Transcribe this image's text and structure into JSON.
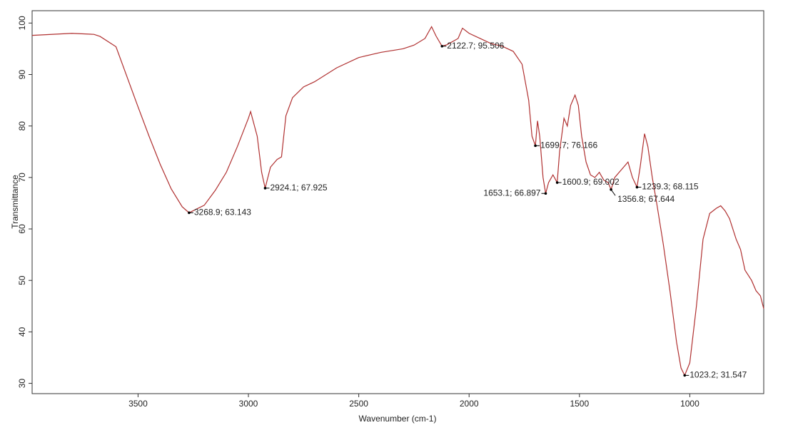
{
  "chart_data": {
    "type": "line",
    "xlabel": "Wavenumber (cm-1)",
    "ylabel": "Transmittance",
    "color": "#b03030",
    "xlim": [
      3980,
      665
    ],
    "ylim": [
      28,
      102.4
    ],
    "xticks": [
      3500,
      3000,
      2500,
      2000,
      1500,
      1000
    ],
    "yticks": [
      30,
      40,
      50,
      60,
      70,
      80,
      90,
      100
    ],
    "x": [
      3980,
      3800,
      3700,
      3672,
      3600,
      3500,
      3450,
      3400,
      3350,
      3300,
      3268.9,
      3200,
      3150,
      3100,
      3050,
      3000,
      2990,
      2960,
      2940,
      2924.1,
      2900,
      2870,
      2850,
      2830,
      2800,
      2750,
      2700,
      2600,
      2500,
      2400,
      2300,
      2250,
      2200,
      2170,
      2150,
      2122.7,
      2100,
      2050,
      2030,
      2000,
      1950,
      1900,
      1850,
      1800,
      1760,
      1730,
      1715,
      1699.7,
      1690,
      1680,
      1665,
      1653.1,
      1640,
      1620,
      1600.9,
      1590,
      1570,
      1555,
      1540,
      1520,
      1505,
      1490,
      1470,
      1450,
      1430,
      1410,
      1390,
      1370,
      1356.8,
      1340,
      1310,
      1280,
      1260,
      1239.3,
      1225,
      1205,
      1190,
      1170,
      1150,
      1120,
      1090,
      1060,
      1040,
      1023.2,
      1000,
      970,
      940,
      910,
      880,
      860,
      840,
      820,
      790,
      770,
      750,
      720,
      700,
      680,
      665
    ],
    "values": [
      97.6,
      98.0,
      97.8,
      97.4,
      95.4,
      83.7,
      78,
      72.6,
      67.8,
      64.3,
      63.143,
      64.6,
      67.5,
      71,
      76,
      81.5,
      82.8,
      78,
      71,
      67.925,
      72,
      73.5,
      74,
      82,
      85.5,
      87.6,
      88.6,
      91.3,
      93.3,
      94.3,
      95.0,
      95.7,
      97,
      99.3,
      97.5,
      95.506,
      95.8,
      97,
      99,
      98,
      97,
      96,
      95.5,
      94.5,
      92,
      85,
      78,
      76.166,
      81,
      78,
      70,
      66.897,
      69,
      70.5,
      69.002,
      75,
      81.5,
      80,
      84,
      86,
      84,
      78,
      73,
      70.5,
      70,
      71,
      69.5,
      69,
      67.644,
      70,
      71.5,
      73,
      70,
      68.115,
      72,
      78.5,
      76,
      70,
      65,
      57,
      48,
      38,
      33,
      31.547,
      34,
      45,
      58,
      63,
      64,
      64.5,
      63.5,
      62,
      58,
      56,
      52,
      50,
      48,
      47,
      44.5
    ],
    "annotations": [
      {
        "x": 3268.9,
        "y": 63.143,
        "label": "3268.9; 63.143"
      },
      {
        "x": 2924.1,
        "y": 67.925,
        "label": "2924.1; 67.925"
      },
      {
        "x": 2122.7,
        "y": 95.506,
        "label": "2122.7; 95.506"
      },
      {
        "x": 1699.7,
        "y": 76.166,
        "label": "1699.7; 76.166"
      },
      {
        "x": 1653.1,
        "y": 66.897,
        "label": "1653.1; 66.897"
      },
      {
        "x": 1600.9,
        "y": 69.002,
        "label": "1600.9; 69.002"
      },
      {
        "x": 1356.8,
        "y": 67.644,
        "label": "1356.8; 67.644"
      },
      {
        "x": 1239.3,
        "y": 68.115,
        "label": "1239.3; 68.115"
      },
      {
        "x": 1023.2,
        "y": 31.547,
        "label": "1023.2; 31.547"
      }
    ]
  }
}
